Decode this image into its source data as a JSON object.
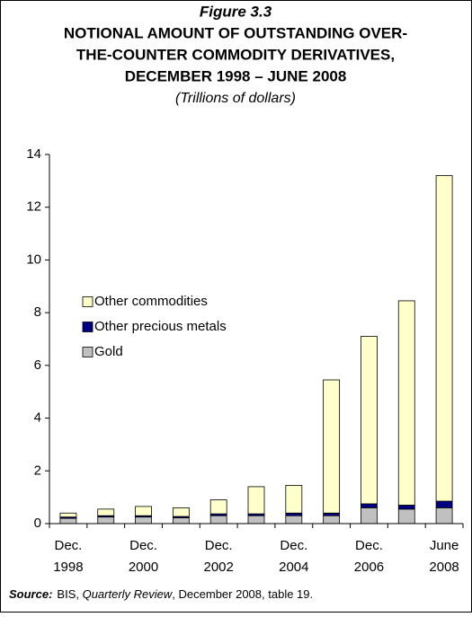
{
  "chart_data": {
    "type": "stacked_bar",
    "figure_label": "Figure 3.3",
    "title": [
      "NOTIONAL AMOUNT OF OUTSTANDING OVER-",
      "THE-COUNTER COMMODITY DERIVATIVES,",
      "DECEMBER 1998 – JUNE 2008"
    ],
    "subtitle": "(Trillions of dollars)",
    "categories": [
      "Dec. 1998",
      null,
      "Dec. 2000",
      null,
      "Dec. 2002",
      null,
      "Dec. 2004",
      null,
      "Dec. 2006",
      null,
      "June 2008"
    ],
    "series": [
      {
        "name": "Gold",
        "color": "#c0c0c0",
        "values": [
          0.2,
          0.25,
          0.25,
          0.22,
          0.3,
          0.3,
          0.3,
          0.3,
          0.6,
          0.55,
          0.6
        ]
      },
      {
        "name": "Other precious metals",
        "color": "#000080",
        "values": [
          0.05,
          0.05,
          0.05,
          0.05,
          0.07,
          0.07,
          0.1,
          0.1,
          0.15,
          0.15,
          0.25
        ]
      },
      {
        "name": "Other commodities",
        "color": "#ffffcc",
        "values": [
          0.15,
          0.25,
          0.35,
          0.33,
          0.53,
          1.03,
          1.05,
          5.05,
          6.35,
          7.75,
          12.35
        ]
      }
    ],
    "ylim": [
      0,
      14
    ],
    "yticks": [
      0,
      2,
      4,
      6,
      8,
      10,
      12,
      14
    ],
    "grid": false,
    "legend": "left",
    "source": {
      "label": "Source:",
      "pre": "BIS, ",
      "publication": "Quarterly Review",
      "post": ", December 2008, table 19."
    }
  }
}
